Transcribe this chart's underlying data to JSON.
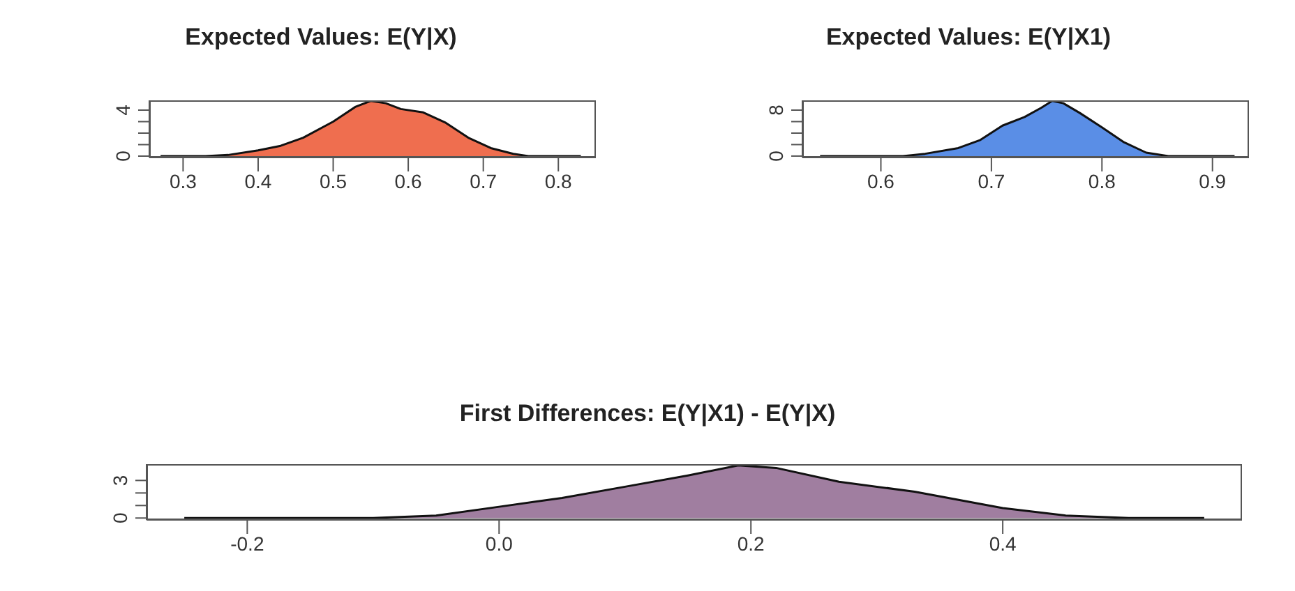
{
  "chart_data": [
    {
      "type": "area",
      "title": "Expected Values: E(Y|X)",
      "color": "#ef6e4f",
      "xlim": [
        0.255,
        0.85
      ],
      "ylim": [
        -0.12,
        4.85
      ],
      "xticks": [
        0.3,
        0.4,
        0.5,
        0.6,
        0.7,
        0.8
      ],
      "yticks": [
        0,
        {
          "value": 1,
          "label": null
        },
        {
          "value": 2,
          "label": null
        },
        {
          "value": 3,
          "label": null
        },
        4
      ],
      "x": [
        0.27,
        0.33,
        0.36,
        0.4,
        0.43,
        0.46,
        0.5,
        0.53,
        0.55,
        0.57,
        0.59,
        0.62,
        0.65,
        0.68,
        0.71,
        0.74,
        0.76,
        0.8,
        0.83
      ],
      "values": [
        0,
        0,
        0.1,
        0.5,
        0.9,
        1.6,
        3.0,
        4.3,
        4.8,
        4.6,
        4.1,
        3.8,
        2.9,
        1.6,
        0.7,
        0.2,
        0,
        0,
        0
      ]
    },
    {
      "type": "area",
      "title": "Expected Values: E(Y|X1)",
      "color": "#5a8ee6",
      "xlim": [
        0.529,
        0.933
      ],
      "ylim": [
        -0.25,
        9.7
      ],
      "xticks": [
        0.6,
        0.7,
        0.8,
        0.9
      ],
      "yticks": [
        0,
        {
          "value": 2,
          "label": null
        },
        {
          "value": 4,
          "label": null
        },
        {
          "value": 6,
          "label": null
        },
        8
      ],
      "x": [
        0.545,
        0.62,
        0.64,
        0.67,
        0.69,
        0.71,
        0.73,
        0.745,
        0.755,
        0.765,
        0.78,
        0.8,
        0.82,
        0.84,
        0.86,
        0.92
      ],
      "values": [
        0,
        0,
        0.4,
        1.4,
        2.8,
        5.3,
        6.8,
        8.4,
        9.6,
        9.2,
        7.5,
        5.0,
        2.4,
        0.6,
        0,
        0
      ]
    },
    {
      "type": "area",
      "title": "First Differences: E(Y|X1) - E(Y|X)",
      "color": "#a07ea0",
      "xlim": [
        -0.28,
        0.59
      ],
      "ylim": [
        -0.15,
        4.3
      ],
      "xticks": [
        -0.2,
        {
          "value": 0,
          "label": "0.0"
        },
        0.2,
        0.4
      ],
      "yticks": [
        0,
        {
          "value": 1,
          "label": null
        },
        {
          "value": 2,
          "label": null
        },
        3
      ],
      "x": [
        -0.25,
        -0.1,
        -0.05,
        0.0,
        0.05,
        0.1,
        0.15,
        0.19,
        0.22,
        0.27,
        0.33,
        0.4,
        0.45,
        0.5,
        0.56
      ],
      "values": [
        0,
        0,
        0.2,
        0.9,
        1.6,
        2.5,
        3.4,
        4.2,
        4.0,
        2.9,
        2.1,
        0.8,
        0.2,
        0,
        0
      ]
    }
  ]
}
